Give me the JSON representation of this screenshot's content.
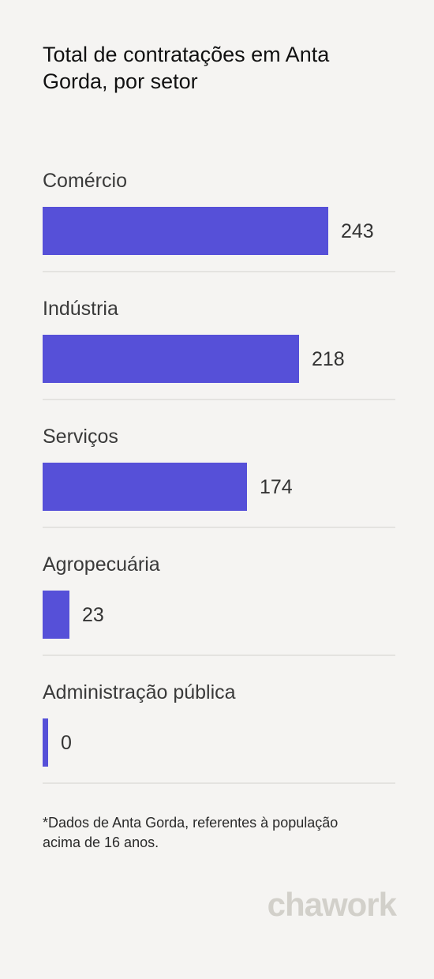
{
  "header": {
    "title": "Total de contratações em Anta Gorda, por setor"
  },
  "chart_data": {
    "type": "bar",
    "orientation": "horizontal",
    "title": "Total de contratações em Anta Gorda, por setor",
    "categories": [
      "Comércio",
      "Indústria",
      "Serviços",
      "Agropecuária",
      "Administração pública"
    ],
    "values": [
      243,
      218,
      174,
      23,
      0
    ],
    "value_labels": [
      "243",
      "218",
      "174",
      "23",
      "0"
    ],
    "xlim": [
      0,
      243
    ],
    "grid": false,
    "legend": "none",
    "bar_color": "#5650d8"
  },
  "footnote": {
    "text": "*Dados de Anta Gorda, referentes à população acima de 16 anos."
  },
  "brand": {
    "logo_text": "chawork"
  },
  "colors": {
    "background": "#f5f4f2",
    "bar": "#5650d8",
    "divider": "#e4e3e0",
    "logo": "#d2d0ca"
  }
}
